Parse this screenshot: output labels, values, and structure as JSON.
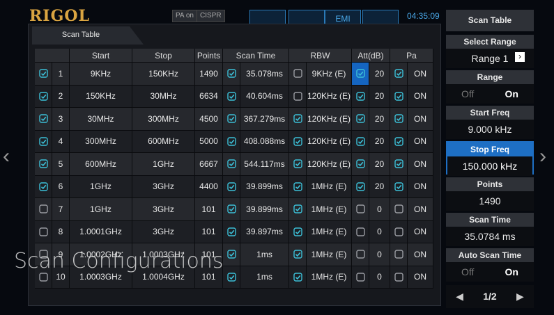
{
  "header": {
    "brand": "RIGOL",
    "badges": [
      "PA on",
      "CISPR"
    ],
    "tab": "EMI",
    "time": "04:35:09"
  },
  "dialog": {
    "title": "Scan Table",
    "columns": {
      "start": "Start",
      "stop": "Stop",
      "points": "Points",
      "scan_time": "Scan Time",
      "rbw": "RBW",
      "att": "Att(dB)",
      "pa": "Pa"
    },
    "rows": [
      {
        "index": 1,
        "enabled": true,
        "start": "9KHz",
        "stop": "150KHz",
        "points": 1490,
        "scan_time_auto": true,
        "scan_time": "35.078ms",
        "rbw_auto": false,
        "rbw": "9KHz (E)",
        "att_auto": true,
        "att": 20,
        "pa_on": true,
        "pa": "ON"
      },
      {
        "index": 2,
        "enabled": true,
        "start": "150KHz",
        "stop": "30MHz",
        "points": 6634,
        "scan_time_auto": true,
        "scan_time": "40.604ms",
        "rbw_auto": false,
        "rbw": "120KHz (E)",
        "att_auto": true,
        "att": 20,
        "pa_on": true,
        "pa": "ON"
      },
      {
        "index": 3,
        "enabled": true,
        "start": "30MHz",
        "stop": "300MHz",
        "points": 4500,
        "scan_time_auto": true,
        "scan_time": "367.279ms",
        "rbw_auto": true,
        "rbw": "120KHz (E)",
        "att_auto": true,
        "att": 20,
        "pa_on": true,
        "pa": "ON"
      },
      {
        "index": 4,
        "enabled": true,
        "start": "300MHz",
        "stop": "600MHz",
        "points": 5000,
        "scan_time_auto": true,
        "scan_time": "408.088ms",
        "rbw_auto": true,
        "rbw": "120KHz (E)",
        "att_auto": true,
        "att": 20,
        "pa_on": true,
        "pa": "ON"
      },
      {
        "index": 5,
        "enabled": true,
        "start": "600MHz",
        "stop": "1GHz",
        "points": 6667,
        "scan_time_auto": true,
        "scan_time": "544.117ms",
        "rbw_auto": true,
        "rbw": "120KHz (E)",
        "att_auto": true,
        "att": 20,
        "pa_on": true,
        "pa": "ON"
      },
      {
        "index": 6,
        "enabled": true,
        "start": "1GHz",
        "stop": "3GHz",
        "points": 4400,
        "scan_time_auto": true,
        "scan_time": "39.899ms",
        "rbw_auto": true,
        "rbw": "1MHz (E)",
        "att_auto": true,
        "att": 20,
        "pa_on": true,
        "pa": "ON"
      },
      {
        "index": 7,
        "enabled": false,
        "start": "1GHz",
        "stop": "3GHz",
        "points": 101,
        "scan_time_auto": true,
        "scan_time": "39.899ms",
        "rbw_auto": true,
        "rbw": "1MHz (E)",
        "att_auto": false,
        "att": 0,
        "pa_on": false,
        "pa": "ON"
      },
      {
        "index": 8,
        "enabled": false,
        "start": "1.0001GHz",
        "stop": "3GHz",
        "points": 101,
        "scan_time_auto": true,
        "scan_time": "39.897ms",
        "rbw_auto": true,
        "rbw": "1MHz (E)",
        "att_auto": false,
        "att": 0,
        "pa_on": false,
        "pa": "ON"
      },
      {
        "index": 9,
        "enabled": false,
        "start": "1.0002GHz",
        "stop": "1.0003GHz",
        "points": 101,
        "scan_time_auto": true,
        "scan_time": "1ms",
        "rbw_auto": true,
        "rbw": "1MHz (E)",
        "att_auto": false,
        "att": 0,
        "pa_on": false,
        "pa": "ON"
      },
      {
        "index": 10,
        "enabled": false,
        "start": "1.0003GHz",
        "stop": "1.0004GHz",
        "points": 101,
        "scan_time_auto": true,
        "scan_time": "1ms",
        "rbw_auto": true,
        "rbw": "1MHz (E)",
        "att_auto": false,
        "att": 0,
        "pa_on": false,
        "pa": "ON"
      }
    ]
  },
  "menu": {
    "title": "Scan Table",
    "items": [
      {
        "label": "Select Range",
        "value": "Range 1"
      },
      {
        "label": "Range",
        "off": "Off",
        "on": "On"
      },
      {
        "label": "Start Freq",
        "value": "9.000 kHz"
      },
      {
        "label": "Stop Freq",
        "value": "150.000 kHz",
        "selected": true
      },
      {
        "label": "Points",
        "value": "1490"
      },
      {
        "label": "Scan Time",
        "value": "35.0784 ms"
      },
      {
        "label": "Auto Scan Time",
        "off": "Off",
        "on": "On"
      }
    ],
    "page": "1/2"
  },
  "caption": "Scan Configurations"
}
